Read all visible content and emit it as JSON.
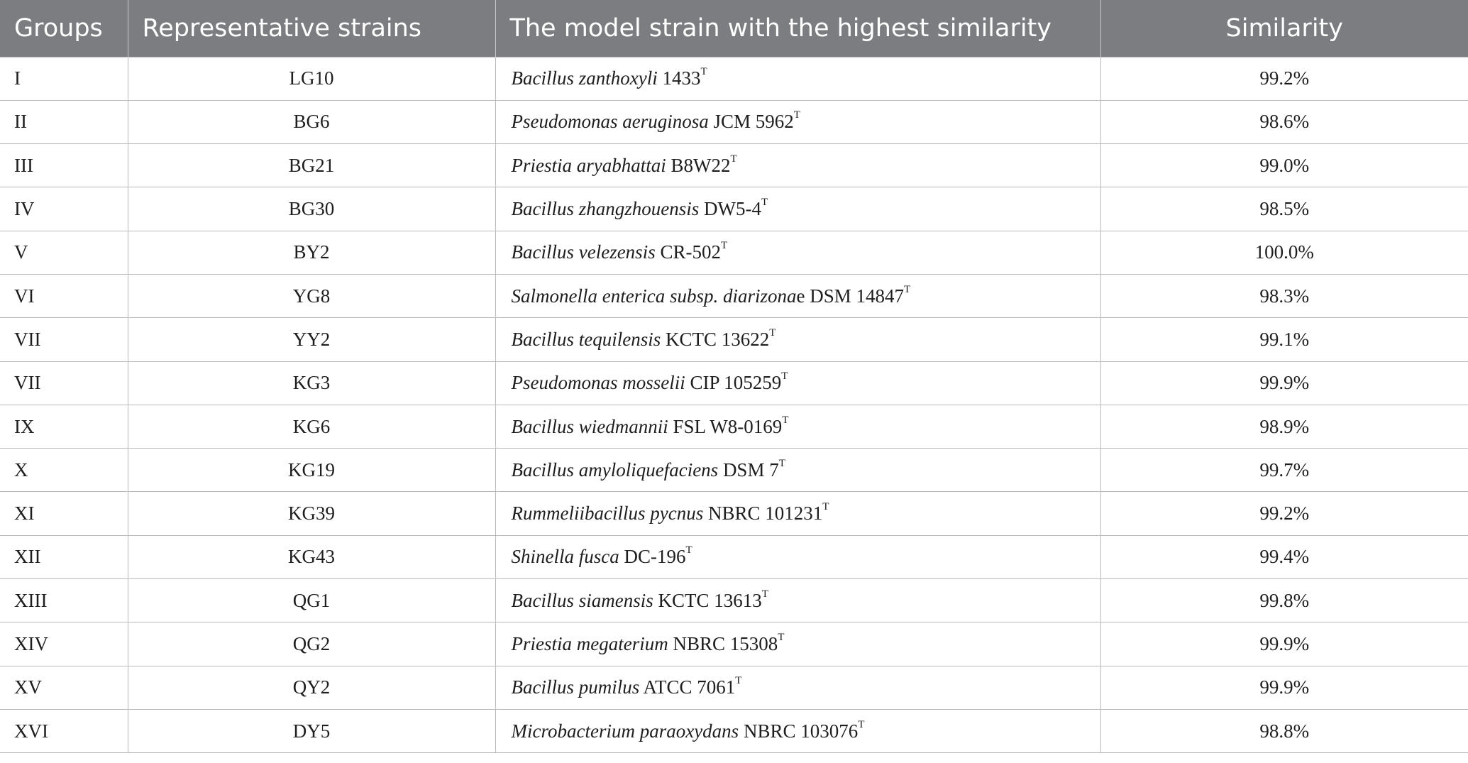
{
  "headers": {
    "groups": "Groups",
    "representative": "Representative strains",
    "model": "The model strain with the highest similarity",
    "similarity": "Similarity"
  },
  "rows": [
    {
      "group": "I",
      "strain": "LG10",
      "species": "Bacillus zanthoxyli",
      "strain_id": " 1433",
      "sup": "T",
      "similarity": "99.2%"
    },
    {
      "group": "II",
      "strain": "BG6",
      "species": "Pseudomonas aeruginosa",
      "strain_id": " JCM 5962",
      "sup": "T",
      "similarity": "98.6%"
    },
    {
      "group": "III",
      "strain": "BG21",
      "species": "Priestia aryabhattai",
      "strain_id": " B8W22",
      "sup": "T",
      "similarity": "99.0%"
    },
    {
      "group": "IV",
      "strain": "BG30",
      "species": "Bacillus zhangzhouensis",
      "strain_id": " DW5-4",
      "sup": "T",
      "similarity": "98.5%"
    },
    {
      "group": "V",
      "strain": "BY2",
      "species": "Bacillus velezensis",
      "strain_id": " CR-502",
      "sup": "T",
      "similarity": "100.0%"
    },
    {
      "group": "VI",
      "strain": "YG8",
      "species": "Salmonella enterica subsp. diarizona",
      "strain_id": "e DSM 14847",
      "sup": "T",
      "similarity": "98.3%"
    },
    {
      "group": "VII",
      "strain": "YY2",
      "species": "Bacillus tequilensis",
      "strain_id": " KCTC 13622",
      "sup": "T",
      "similarity": "99.1%"
    },
    {
      "group": "VII",
      "strain": "KG3",
      "species": "Pseudomonas mosselii",
      "strain_id": " CIP 105259",
      "sup": "T",
      "similarity": "99.9%"
    },
    {
      "group": "IX",
      "strain": "KG6",
      "species": "Bacillus wiedmannii",
      "strain_id": " FSL W8-0169",
      "sup": "T",
      "similarity": "98.9%"
    },
    {
      "group": "X",
      "strain": "KG19",
      "species": "Bacillus amyloliquefaciens",
      "strain_id": " DSM 7",
      "sup": "T",
      "similarity": "99.7%"
    },
    {
      "group": "XI",
      "strain": "KG39",
      "species": "Rummeliibacillus pycnus",
      "strain_id": " NBRC 101231",
      "sup": "T",
      "similarity": "99.2%"
    },
    {
      "group": "XII",
      "strain": "KG43",
      "species": "Shinella fusca",
      "strain_id": " DC-196",
      "sup": "T",
      "similarity": "99.4%"
    },
    {
      "group": "XIII",
      "strain": "QG1",
      "species": "Bacillus siamensis",
      "strain_id": " KCTC 13613",
      "sup": "T",
      "similarity": "99.8%"
    },
    {
      "group": "XIV",
      "strain": "QG2",
      "species": "Priestia megaterium",
      "strain_id": " NBRC 15308",
      "sup": "T",
      "similarity": "99.9%"
    },
    {
      "group": "XV",
      "strain": "QY2",
      "species": "Bacillus pumilus",
      "strain_id": " ATCC 7061",
      "sup": "T",
      "similarity": "99.9%"
    },
    {
      "group": "XVI",
      "strain": "DY5",
      "species": "Microbacterium paraoxydans",
      "strain_id": " NBRC 103076",
      "sup": "T",
      "similarity": "98.8%"
    }
  ]
}
